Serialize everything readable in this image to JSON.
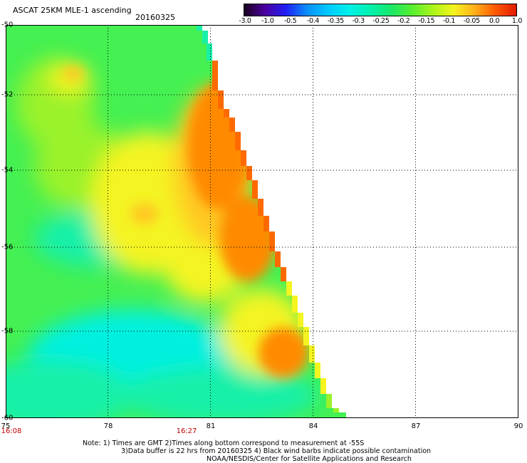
{
  "header": {
    "title": "ASCAT 25KM MLE-1 ascending",
    "date": "20160325"
  },
  "colorbar": {
    "labels": [
      "-3.0",
      "-1.0",
      "-0.5",
      "-0.4",
      "-0.35",
      "-0.3",
      "-0.25",
      "-0.2",
      "-0.15",
      "-0.1",
      "-0.05",
      "0.0",
      "1.0"
    ],
    "colors": [
      "#1a0020",
      "#4c00a0",
      "#1f1ff5",
      "#0a8ff8",
      "#00c8ff",
      "#00f0ea",
      "#00f0b0",
      "#19e86a",
      "#55ef2f",
      "#a8f41a",
      "#f4f41e",
      "#ffb01a",
      "#ff5a00",
      "#e01a00"
    ]
  },
  "map": {
    "lat_labels": [
      "-50",
      "-52",
      "-54",
      "-56",
      "-58",
      "-60"
    ],
    "lon_labels": [
      "75",
      "78",
      "81",
      "84",
      "87",
      "90"
    ],
    "time_labels": [
      "16:08",
      "16:27"
    ],
    "swath_colors": {
      "cyan": "#00f0e0",
      "teal": "#18f0a8",
      "green": "#44f052",
      "lime": "#9af22a",
      "yellow": "#f4f420",
      "amber": "#ffc820",
      "orange": "#ff8a00",
      "red": "#ff6a00"
    }
  },
  "footer": {
    "note_line1": "Note: 1) Times are GMT 2)Times along bottom correspond to measurement at -55S",
    "note_line2": "3)Data buffer is 22 hrs from 20160325 4) Black wind barbs indicate possible contamination",
    "credit": "NOAA/NESDIS/Center for Satellite Applications and Research"
  }
}
